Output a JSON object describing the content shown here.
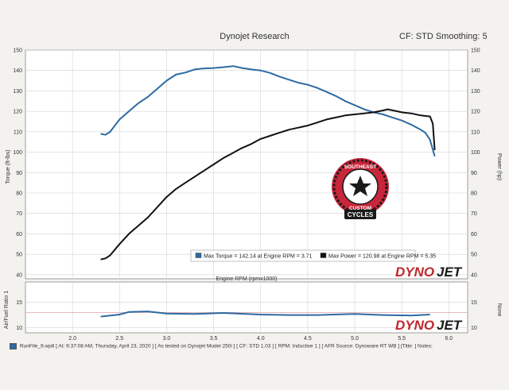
{
  "header": {
    "title": "Dynojet Research",
    "cf_label": "CF: STD Smoothing: 5"
  },
  "colors": {
    "torque": "#2d6aa3",
    "power": "#111111",
    "afr": "#2d6aa3",
    "afr_ref": "#d9a5a5",
    "brand_red": "#c0272d",
    "brand_dark": "#1a1a1a",
    "logo_red": "#c8263a"
  },
  "main_panel": {
    "left_axis_label": "Torque (ft-lbs)",
    "right_axis_label": "Power (hp)",
    "legend_torque": "Max Torque = 142.14 at Engine RPM = 3.71",
    "legend_power": "Max Power = 120.98 at Engine RPM = 5.35",
    "logo_text_top": "SOUTHEAST",
    "logo_text_mid": "CUSTOM",
    "logo_text_bottom": "CYCLES",
    "brand_dyno": "DYNO",
    "brand_jet": "JET"
  },
  "afr_panel": {
    "left_axis_label": "Air/Fuel Ratio 1",
    "right_axis_label": "None",
    "brand_dyno": "DYNO",
    "brand_jet": "JET"
  },
  "x_axis_label": "Engine RPM (rpmx1000)",
  "footer_text": "RunFile_9.wp8 [ At: 9:37:08 AM, Thursday, April 23, 2020 ] [ As tested on Dynojet Model 250i ] [ CF: STD 1.03 ] [ RPM: Inductive 1 ] [ AFR Source: Dynoware RT WB ] [Title: ]  Notes:",
  "chart_data": [
    {
      "type": "line",
      "title": "Dynojet Research",
      "xlabel": "Engine RPM (rpmx1000)",
      "ylabel": "Torque (ft-lbs)",
      "y2label": "Power (hp)",
      "xlim": [
        1.5,
        6.2
      ],
      "ylim": [
        38,
        150
      ],
      "xticks": [
        2.0,
        2.5,
        3.0,
        3.5,
        4.0,
        4.5,
        5.0,
        5.5,
        6.0
      ],
      "yticks": [
        40,
        50,
        60,
        70,
        80,
        90,
        100,
        110,
        120,
        130,
        140,
        150
      ],
      "grid": true,
      "series": [
        {
          "name": "Torque",
          "axis": "left",
          "x": [
            2.3,
            2.35,
            2.4,
            2.5,
            2.6,
            2.7,
            2.8,
            2.9,
            3.0,
            3.1,
            3.2,
            3.3,
            3.4,
            3.5,
            3.6,
            3.71,
            3.8,
            3.9,
            4.0,
            4.1,
            4.2,
            4.3,
            4.4,
            4.5,
            4.6,
            4.7,
            4.8,
            4.9,
            5.0,
            5.1,
            5.2,
            5.3,
            5.4,
            5.5,
            5.6,
            5.7,
            5.75,
            5.8,
            5.85
          ],
          "values": [
            109,
            108.5,
            110,
            116,
            120,
            124,
            127,
            131,
            135,
            138,
            139,
            140.5,
            141,
            141.2,
            141.6,
            142.14,
            141.2,
            140.5,
            140,
            138.8,
            137,
            135.5,
            134,
            133,
            131.5,
            129.5,
            127.5,
            125,
            123,
            121,
            119.5,
            118.5,
            117,
            115.5,
            113.5,
            111,
            109.5,
            106,
            98
          ]
        },
        {
          "name": "Power",
          "axis": "right",
          "x": [
            2.3,
            2.35,
            2.4,
            2.5,
            2.6,
            2.7,
            2.8,
            2.9,
            3.0,
            3.1,
            3.2,
            3.3,
            3.4,
            3.5,
            3.6,
            3.7,
            3.8,
            3.9,
            4.0,
            4.1,
            4.2,
            4.3,
            4.4,
            4.5,
            4.6,
            4.7,
            4.8,
            4.9,
            5.0,
            5.1,
            5.2,
            5.3,
            5.35,
            5.4,
            5.5,
            5.6,
            5.7,
            5.8,
            5.83,
            5.85
          ],
          "values": [
            47.5,
            48,
            49.5,
            55,
            60,
            64,
            68,
            73,
            78,
            82,
            85,
            88,
            91,
            94,
            97,
            99.5,
            102,
            104,
            106.5,
            108,
            109.5,
            111,
            112,
            113,
            114.5,
            116,
            117,
            118,
            118.5,
            119,
            119.5,
            120.4,
            120.98,
            120.5,
            119.5,
            119,
            118,
            117.5,
            114,
            101
          ]
        }
      ],
      "legend": [
        "Max Torque = 142.14 at Engine RPM = 3.71",
        "Max Power = 120.98 at Engine RPM = 5.35"
      ],
      "legend_position": "bottom-center"
    },
    {
      "type": "line",
      "xlabel": "Engine RPM (rpmx1000)",
      "ylabel": "Air/Fuel Ratio 1",
      "y2label": "None",
      "xlim": [
        1.5,
        6.2
      ],
      "ylim": [
        9,
        19
      ],
      "xticks": [
        2.0,
        2.5,
        3.0,
        3.5,
        4.0,
        4.5,
        5.0,
        5.5,
        6.0
      ],
      "yticks": [
        10,
        15
      ],
      "grid": true,
      "series": [
        {
          "name": "Air/Fuel Ratio 1",
          "x": [
            2.3,
            2.5,
            2.6,
            2.8,
            3.0,
            3.3,
            3.6,
            4.0,
            4.3,
            4.6,
            5.0,
            5.3,
            5.6,
            5.8
          ],
          "values": [
            12.2,
            12.6,
            13.1,
            13.2,
            12.8,
            12.7,
            12.9,
            12.6,
            12.5,
            12.5,
            12.7,
            12.5,
            12.4,
            12.6
          ]
        }
      ],
      "reference_line": 13
    }
  ]
}
